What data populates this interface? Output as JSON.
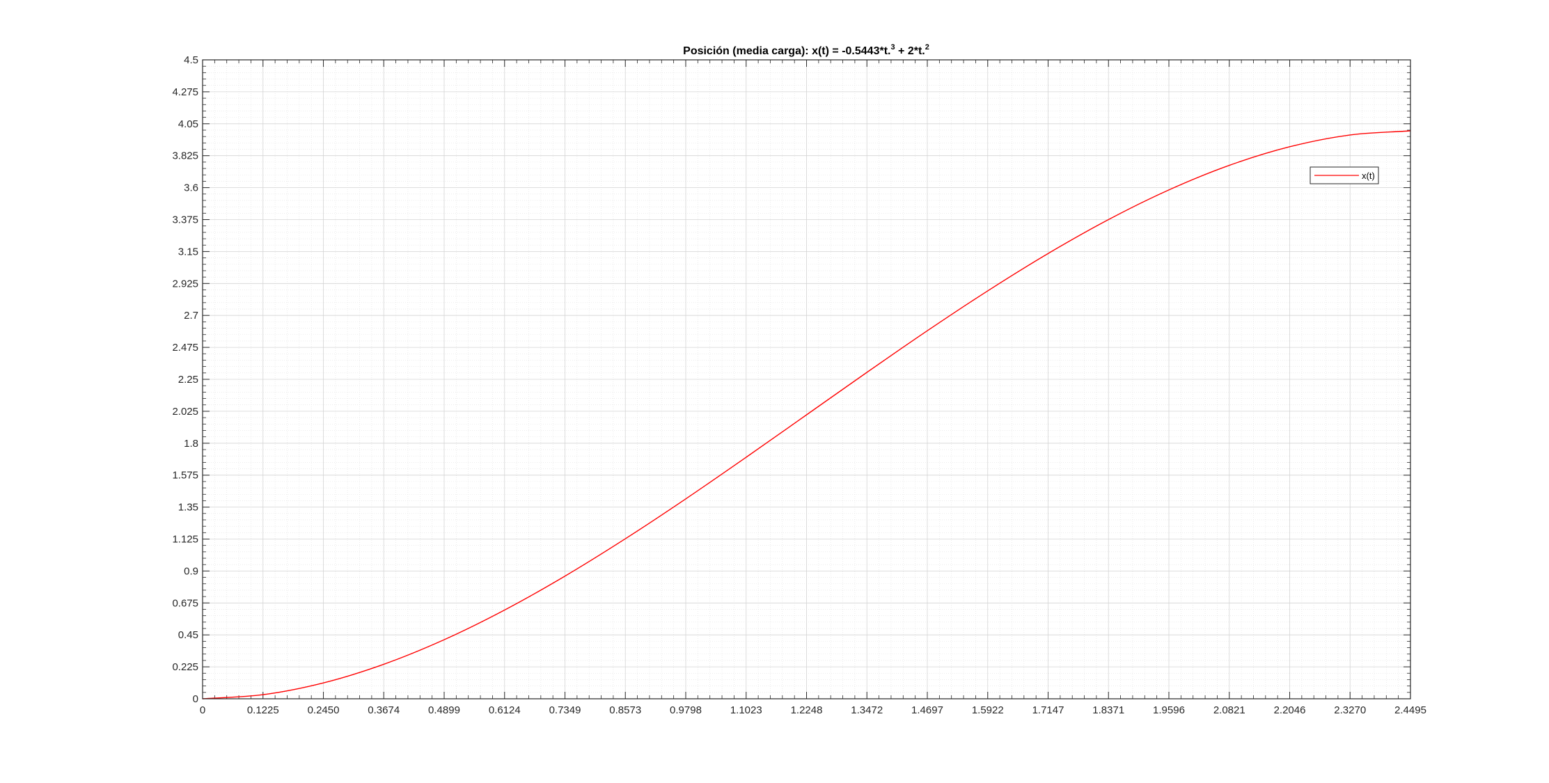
{
  "chart_data": {
    "type": "line",
    "title_main": "Posición (media carga): x(t) = -0.5443*t.",
    "title_exp1": "3",
    "title_mid": " + 2*t.",
    "title_exp2": "2",
    "xlabel": "",
    "ylabel": "",
    "xlim": [
      0,
      2.4495
    ],
    "ylim": [
      0,
      4.5
    ],
    "grid": true,
    "minor_grid": true,
    "legend_position": "top-right",
    "line_color": "#ff0000",
    "x_ticks": [
      "0",
      "0.1225",
      "0.2450",
      "0.3674",
      "0.4899",
      "0.6124",
      "0.7349",
      "0.8573",
      "0.9798",
      "1.1023",
      "1.2248",
      "1.3472",
      "1.4697",
      "1.5922",
      "1.7147",
      "1.8371",
      "1.9596",
      "2.0821",
      "2.2046",
      "2.3270",
      "2.4495"
    ],
    "y_ticks": [
      "0",
      "0.225",
      "0.45",
      "0.675",
      "0.9",
      "1.125",
      "1.35",
      "1.575",
      "1.8",
      "2.025",
      "2.25",
      "2.475",
      "2.7",
      "2.925",
      "3.15",
      "3.375",
      "3.6",
      "3.825",
      "4.05",
      "4.275",
      "4.5"
    ],
    "series": [
      {
        "name": "x(t)",
        "x": [
          0,
          0.1225,
          0.245,
          0.3674,
          0.4899,
          0.6124,
          0.7349,
          0.8573,
          0.9798,
          1.1023,
          1.2248,
          1.3472,
          1.4697,
          1.5922,
          1.7147,
          1.8371,
          1.9596,
          2.0821,
          2.2046,
          2.327,
          2.4495
        ],
        "y": [
          0,
          0.029,
          0.112,
          0.243,
          0.416,
          0.625,
          0.864,
          1.127,
          1.408,
          1.701,
          2.0,
          2.299,
          2.592,
          2.873,
          3.136,
          3.375,
          3.584,
          3.757,
          3.888,
          3.971,
          4.0
        ]
      }
    ]
  }
}
